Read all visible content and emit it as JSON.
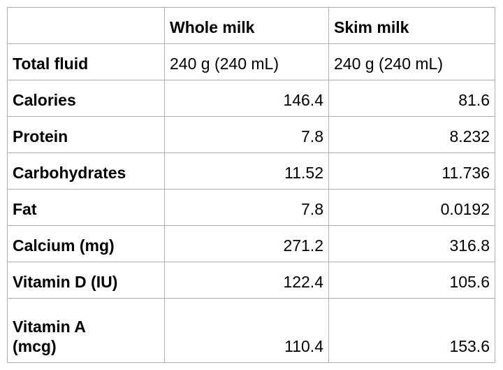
{
  "page": {
    "background_color": "#ffffff",
    "border_color": "#b0b0b0",
    "text_color": "#000000"
  },
  "table": {
    "header": {
      "col0": "",
      "col1": "Whole milk",
      "col2": "Skim milk"
    },
    "rows": [
      {
        "label": "Total fluid",
        "whole": "240 g (240 mL)",
        "skim": "240 g (240 mL)"
      },
      {
        "label": "Calories",
        "whole": "146.4",
        "skim": "81.6"
      },
      {
        "label": "Protein",
        "whole": "7.8",
        "skim": "8.232"
      },
      {
        "label": "Carbohydrates",
        "whole": "11.52",
        "skim": "11.736"
      },
      {
        "label": "Fat",
        "whole": "7.8",
        "skim": "0.0192"
      },
      {
        "label": "Calcium (mg)",
        "whole": "271.2",
        "skim": "316.8"
      },
      {
        "label": "Vitamin D (IU)",
        "whole": "122.4",
        "skim": "105.6"
      },
      {
        "label": "Vitamin A",
        "label2": "(mcg)",
        "whole": "110.4",
        "skim": "153.6"
      }
    ]
  }
}
